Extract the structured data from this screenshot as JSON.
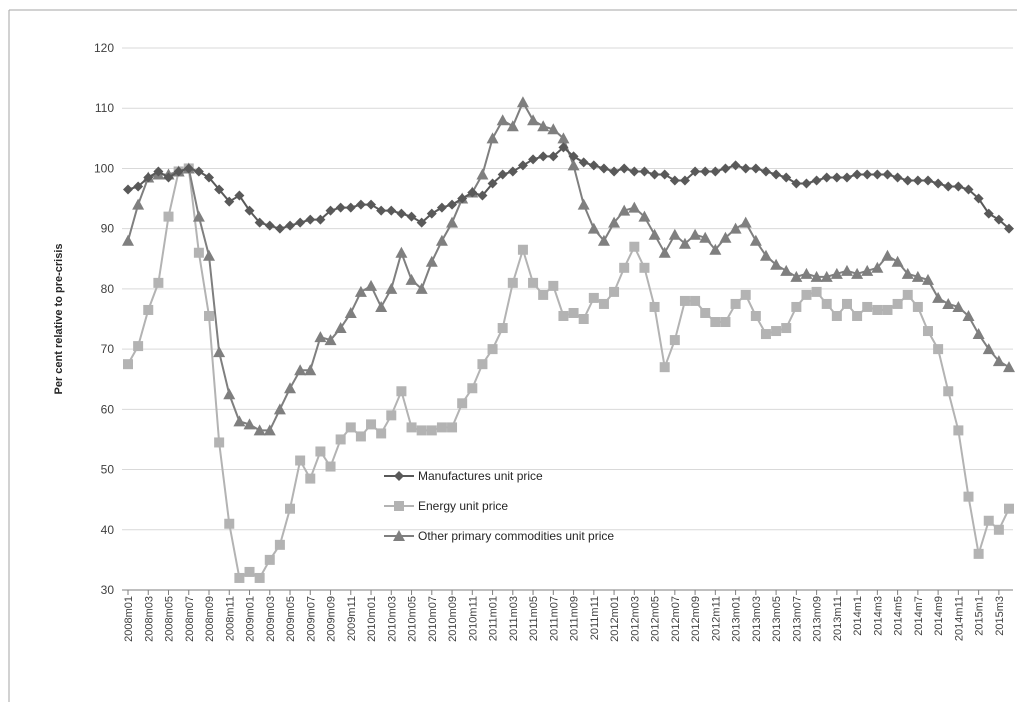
{
  "chart_data": {
    "type": "line",
    "title": "",
    "xlabel": "",
    "ylabel": "Per cent relative to pre-crisis",
    "ylim": [
      30,
      120
    ],
    "ytick_step": 10,
    "yticks": [
      "30",
      "40",
      "50",
      "60",
      "70",
      "80",
      "90",
      "100",
      "110",
      "120"
    ],
    "grid": "horizontal",
    "legend_position": "center",
    "x": [
      "2008m01",
      "2008m02",
      "2008m03",
      "2008m04",
      "2008m05",
      "2008m06",
      "2008m07",
      "2008m08",
      "2008m09",
      "2008m10",
      "2008m11",
      "2008m12",
      "2009m01",
      "2009m02",
      "2009m03",
      "2009m04",
      "2009m05",
      "2009m06",
      "2009m07",
      "2009m08",
      "2009m09",
      "2009m10",
      "2009m11",
      "2009m12",
      "2010m01",
      "2010m02",
      "2010m03",
      "2010m04",
      "2010m05",
      "2010m06",
      "2010m07",
      "2010m08",
      "2010m09",
      "2010m10",
      "2010m11",
      "2010m12",
      "2011m01",
      "2011m02",
      "2011m03",
      "2011m04",
      "2011m05",
      "2011m06",
      "2011m07",
      "2011m08",
      "2011m09",
      "2011m10",
      "2011m11",
      "2011m12",
      "2012m01",
      "2012m02",
      "2012m03",
      "2012m04",
      "2012m05",
      "2012m06",
      "2012m07",
      "2012m08",
      "2012m09",
      "2012m10",
      "2012m11",
      "2012m12",
      "2013m01",
      "2013m02",
      "2013m03",
      "2013m04",
      "2013m05",
      "2013m06",
      "2013m07",
      "2013m08",
      "2013m09",
      "2013m10",
      "2013m11",
      "2013m12",
      "2014m1",
      "2014m2",
      "2014m3",
      "2014m4",
      "2014m5",
      "2014m6",
      "2014m7",
      "2014m8",
      "2014m9",
      "2014m10",
      "2014m11",
      "2014m12",
      "2015m1",
      "2015m2",
      "2015m3",
      "2015m4"
    ],
    "xtick_labels": [
      "2008m01",
      "2008m03",
      "2008m05",
      "2008m07",
      "2008m09",
      "2008m11",
      "2009m01",
      "2009m03",
      "2009m05",
      "2009m07",
      "2009m09",
      "2009m11",
      "2010m01",
      "2010m03",
      "2010m05",
      "2010m07",
      "2010m09",
      "2010m11",
      "2011m01",
      "2011m03",
      "2011m05",
      "2011m07",
      "2011m09",
      "2011m11",
      "2012m01",
      "2012m03",
      "2012m05",
      "2012m07",
      "2012m09",
      "2012m11",
      "2013m01",
      "2013m03",
      "2013m05",
      "2013m07",
      "2013m09",
      "2013m11",
      "2014m1",
      "2014m3",
      "2014m5",
      "2014m7",
      "2014m9",
      "2014m11",
      "2015m1",
      "2015m3"
    ],
    "series": [
      {
        "name": "Manufactures unit price",
        "marker": "diamond",
        "color": "#595959",
        "values": [
          96.5,
          97,
          98.5,
          99.5,
          98.5,
          99.5,
          100,
          99.5,
          98.5,
          96.5,
          94.5,
          95.5,
          93,
          91,
          90.5,
          90,
          90.5,
          91,
          91.5,
          91.5,
          93,
          93.5,
          93.5,
          94,
          94,
          93,
          93,
          92.5,
          92,
          91,
          92.5,
          93.5,
          94,
          95,
          96,
          95.5,
          97.5,
          99,
          99.5,
          100.5,
          101.5,
          102,
          102,
          103.5,
          102,
          101,
          100.5,
          100,
          99.5,
          100,
          99.5,
          99.5,
          99,
          99,
          98,
          98,
          99.5,
          99.5,
          99.5,
          100,
          100.5,
          100,
          100,
          99.5,
          99,
          98.5,
          97.5,
          97.5,
          98,
          98.5,
          98.5,
          98.5,
          99,
          99,
          99,
          99,
          98.5,
          98,
          98,
          98,
          97.5,
          97,
          97,
          96.5,
          95,
          92.5,
          91.5,
          90
        ]
      },
      {
        "name": "Energy unit price",
        "marker": "square",
        "color": "#b3b3b3",
        "values": [
          67.5,
          70.5,
          76.5,
          81,
          92,
          99.5,
          100,
          86,
          75.5,
          54.5,
          41,
          32,
          33,
          32,
          35,
          37.5,
          43.5,
          51.5,
          48.5,
          53,
          50.5,
          55,
          57,
          55.5,
          57.5,
          56,
          59,
          63,
          57,
          56.5,
          56.5,
          57,
          57,
          61,
          63.5,
          67.5,
          70,
          73.5,
          81,
          86.5,
          81,
          79,
          80.5,
          75.5,
          76,
          75,
          78.5,
          77.5,
          79.5,
          83.5,
          87,
          83.5,
          77,
          67,
          71.5,
          78,
          78,
          76,
          74.5,
          74.5,
          77.5,
          79,
          75.5,
          72.5,
          73,
          73.5,
          77,
          79,
          79.5,
          77.5,
          75.5,
          77.5,
          75.5,
          77,
          76.5,
          76.5,
          77.5,
          79,
          77,
          73,
          70,
          63,
          56.5,
          45.5,
          36,
          41.5,
          40,
          43.5
        ]
      },
      {
        "name": "Other primary commodities unit price",
        "marker": "triangle",
        "color": "#7f7f7f",
        "values": [
          88,
          94,
          98.5,
          99,
          99,
          99.5,
          100,
          92,
          85.5,
          69.5,
          62.5,
          58,
          57.5,
          56.5,
          56.5,
          60,
          63.5,
          66.5,
          66.5,
          72,
          71.5,
          73.5,
          76,
          79.5,
          80.5,
          77,
          80,
          86,
          81.5,
          80,
          84.5,
          88,
          91,
          95,
          96,
          99,
          105,
          108,
          107,
          111,
          108,
          107,
          106.5,
          105,
          100.5,
          94,
          90,
          88,
          91,
          93,
          93.5,
          92,
          89,
          86,
          89,
          87.5,
          89,
          88.5,
          86.5,
          88.5,
          90,
          91,
          88,
          85.5,
          84,
          83,
          82,
          82.5,
          82,
          82,
          82.5,
          83,
          82.5,
          83,
          83.5,
          85.5,
          84.5,
          82.5,
          82,
          81.5,
          78.5,
          77.5,
          77,
          75.5,
          72.5,
          70,
          68,
          67
        ]
      }
    ]
  }
}
